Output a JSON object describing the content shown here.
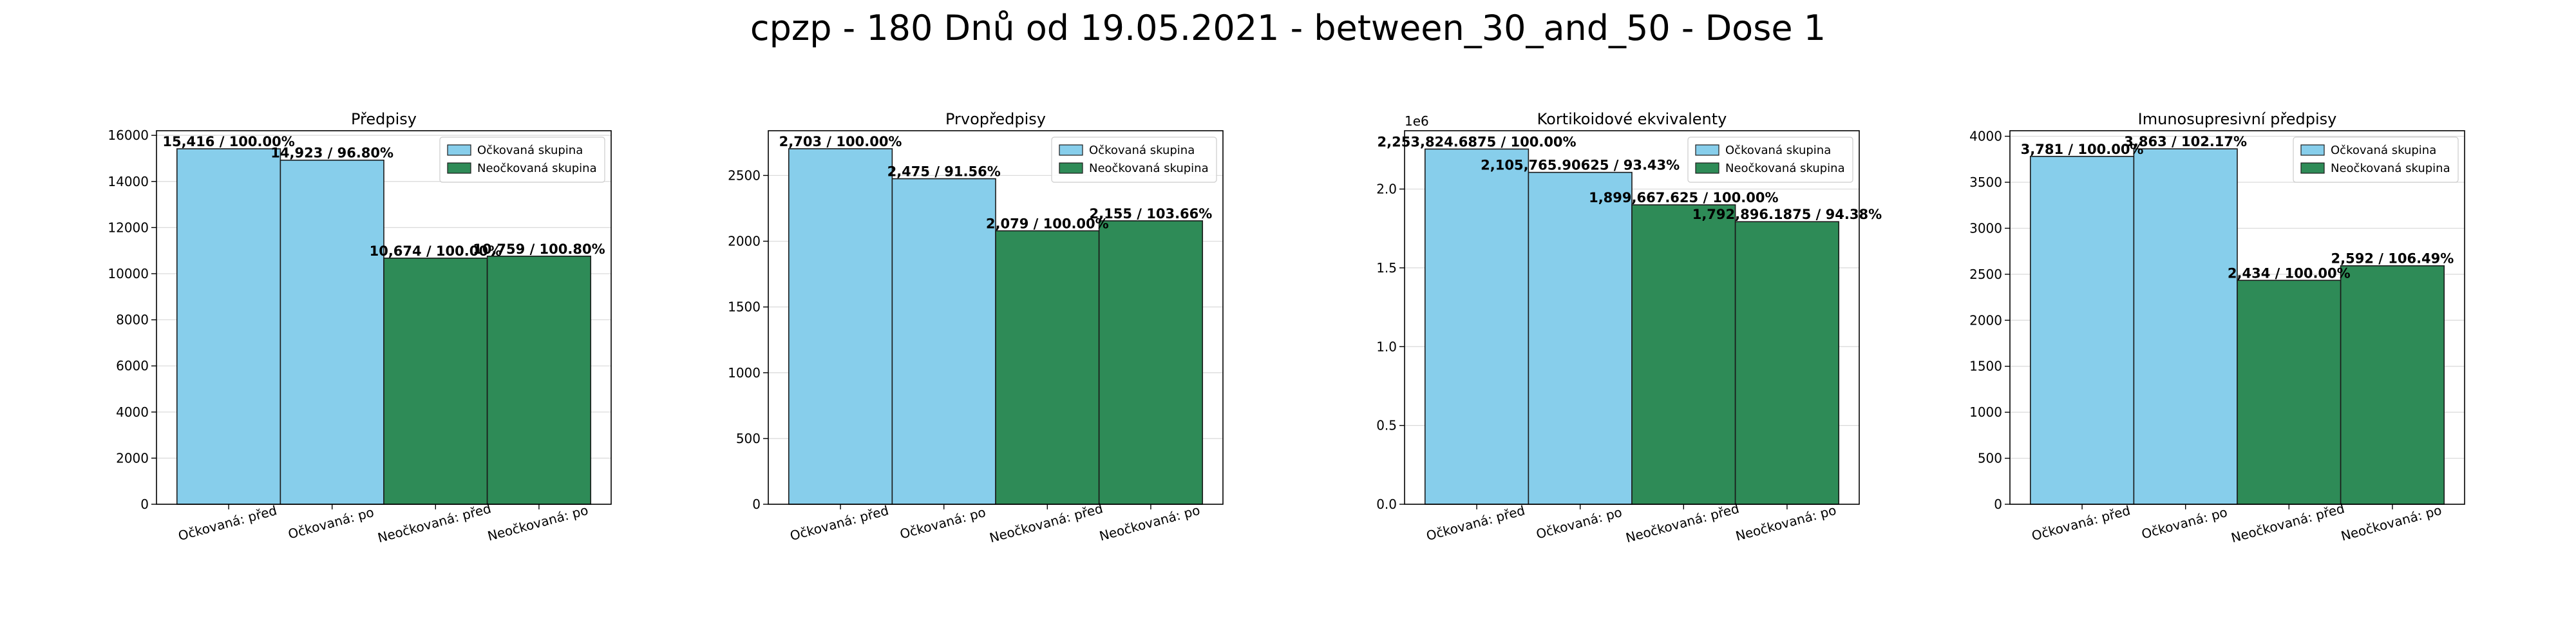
{
  "figure": {
    "suptitle": "cpzp - 180 Dnů od 19.05.2021 - between_30_and_50 - Dose 1",
    "colors": {
      "vaccinated": "#87CEEB",
      "unvaccinated": "#2E8B57",
      "edge": "#1a1a1a",
      "grid": "#d9d9d9"
    }
  },
  "chart_data": [
    {
      "type": "bar",
      "title": "Předpisy",
      "categories": [
        "Očkovaná: před",
        "Očkovaná: po",
        "Neočkovaná: před",
        "Neočkovaná: po"
      ],
      "values": [
        15416,
        14923,
        10674,
        10759
      ],
      "bar_labels": [
        "15,416 / 100.00%",
        "14,923 / 96.80%",
        "10,674 / 100.00%",
        "10,759 / 100.80%"
      ],
      "groups": [
        "vaccinated",
        "vaccinated",
        "unvaccinated",
        "unvaccinated"
      ],
      "ylim": [
        0,
        16200
      ],
      "yticks": [
        0,
        2000,
        4000,
        6000,
        8000,
        10000,
        12000,
        14000,
        16000
      ],
      "ytick_labels": [
        "0",
        "2000",
        "4000",
        "6000",
        "8000",
        "10000",
        "12000",
        "14000",
        "16000"
      ],
      "offset_label": "",
      "legend": [
        "Očkovaná skupina",
        "Neočkovaná skupina"
      ],
      "legend_loc": "upper right",
      "grid": true
    },
    {
      "type": "bar",
      "title": "Prvopředpisy",
      "categories": [
        "Očkovaná: před",
        "Očkovaná: po",
        "Neočkovaná: před",
        "Neočkovaná: po"
      ],
      "values": [
        2703,
        2475,
        2079,
        2155
      ],
      "bar_labels": [
        "2,703 / 100.00%",
        "2,475 / 91.56%",
        "2,079 / 100.00%",
        "2,155 / 103.66%"
      ],
      "groups": [
        "vaccinated",
        "vaccinated",
        "unvaccinated",
        "unvaccinated"
      ],
      "ylim": [
        0,
        2840
      ],
      "yticks": [
        0,
        500,
        1000,
        1500,
        2000,
        2500
      ],
      "ytick_labels": [
        "0",
        "500",
        "1000",
        "1500",
        "2000",
        "2500"
      ],
      "offset_label": "",
      "legend": [
        "Očkovaná skupina",
        "Neočkovaná skupina"
      ],
      "legend_loc": "upper right",
      "grid": true
    },
    {
      "type": "bar",
      "title": "Kortikoidové ekvivalenty",
      "categories": [
        "Očkovaná: před",
        "Očkovaná: po",
        "Neočkovaná: před",
        "Neočkovaná: po"
      ],
      "values": [
        2253824.6875,
        2105765.90625,
        1899667.625,
        1792896.1875
      ],
      "bar_labels": [
        "2,253,824.6875 / 100.00%",
        "2,105,765.90625 / 93.43%",
        "1,899,667.625 / 100.00%",
        "1,792,896.1875 / 94.38%"
      ],
      "groups": [
        "vaccinated",
        "vaccinated",
        "unvaccinated",
        "unvaccinated"
      ],
      "ylim": [
        0,
        2370000
      ],
      "yticks": [
        0,
        500000,
        1000000,
        1500000,
        2000000
      ],
      "ytick_labels": [
        "0.0",
        "0.5",
        "1.0",
        "1.5",
        "2.0"
      ],
      "offset_label": "1e6",
      "legend": [
        "Očkovaná skupina",
        "Neočkovaná skupina"
      ],
      "legend_loc": "upper right",
      "grid": true
    },
    {
      "type": "bar",
      "title": "Imunosupresivní předpisy",
      "categories": [
        "Očkovaná: před",
        "Očkovaná: po",
        "Neočkovaná: před",
        "Neočkovaná: po"
      ],
      "values": [
        3781,
        3863,
        2434,
        2592
      ],
      "bar_labels": [
        "3,781 / 100.00%",
        "3,863 / 102.17%",
        "2,434 / 100.00%",
        "2,592 / 106.49%"
      ],
      "groups": [
        "vaccinated",
        "vaccinated",
        "unvaccinated",
        "unvaccinated"
      ],
      "ylim": [
        0,
        4060
      ],
      "yticks": [
        0,
        500,
        1000,
        1500,
        2000,
        2500,
        3000,
        3500,
        4000
      ],
      "ytick_labels": [
        "0",
        "500",
        "1000",
        "1500",
        "2000",
        "2500",
        "3000",
        "3500",
        "4000"
      ],
      "offset_label": "",
      "legend": [
        "Očkovaná skupina",
        "Neočkovaná skupina"
      ],
      "legend_loc": "upper right",
      "grid": true
    }
  ]
}
